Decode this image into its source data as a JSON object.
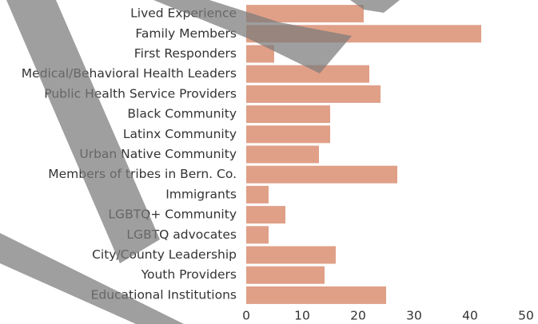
{
  "chart_data": {
    "type": "hbar",
    "categories": [
      "Lived Experience",
      "Family Members",
      "First Responders",
      "Medical/Behavioral Health Leaders",
      "Public Health Service Providers",
      "Black Community",
      "Latinx Community",
      "Urban Native Community",
      "Members of tribes in Bern. Co.",
      "Immigrants",
      "LGBTQ+ Community",
      "LGBTQ advocates",
      "City/County Leadership",
      "Youth Providers",
      "Educational Institutions"
    ],
    "values": [
      21,
      42,
      5,
      22,
      24,
      15,
      15,
      13,
      27,
      4,
      7,
      4,
      16,
      14,
      25
    ],
    "color": "#e0a088",
    "xlim": [
      0,
      50
    ],
    "xticks": [
      0,
      10,
      20,
      30,
      40,
      50
    ]
  }
}
